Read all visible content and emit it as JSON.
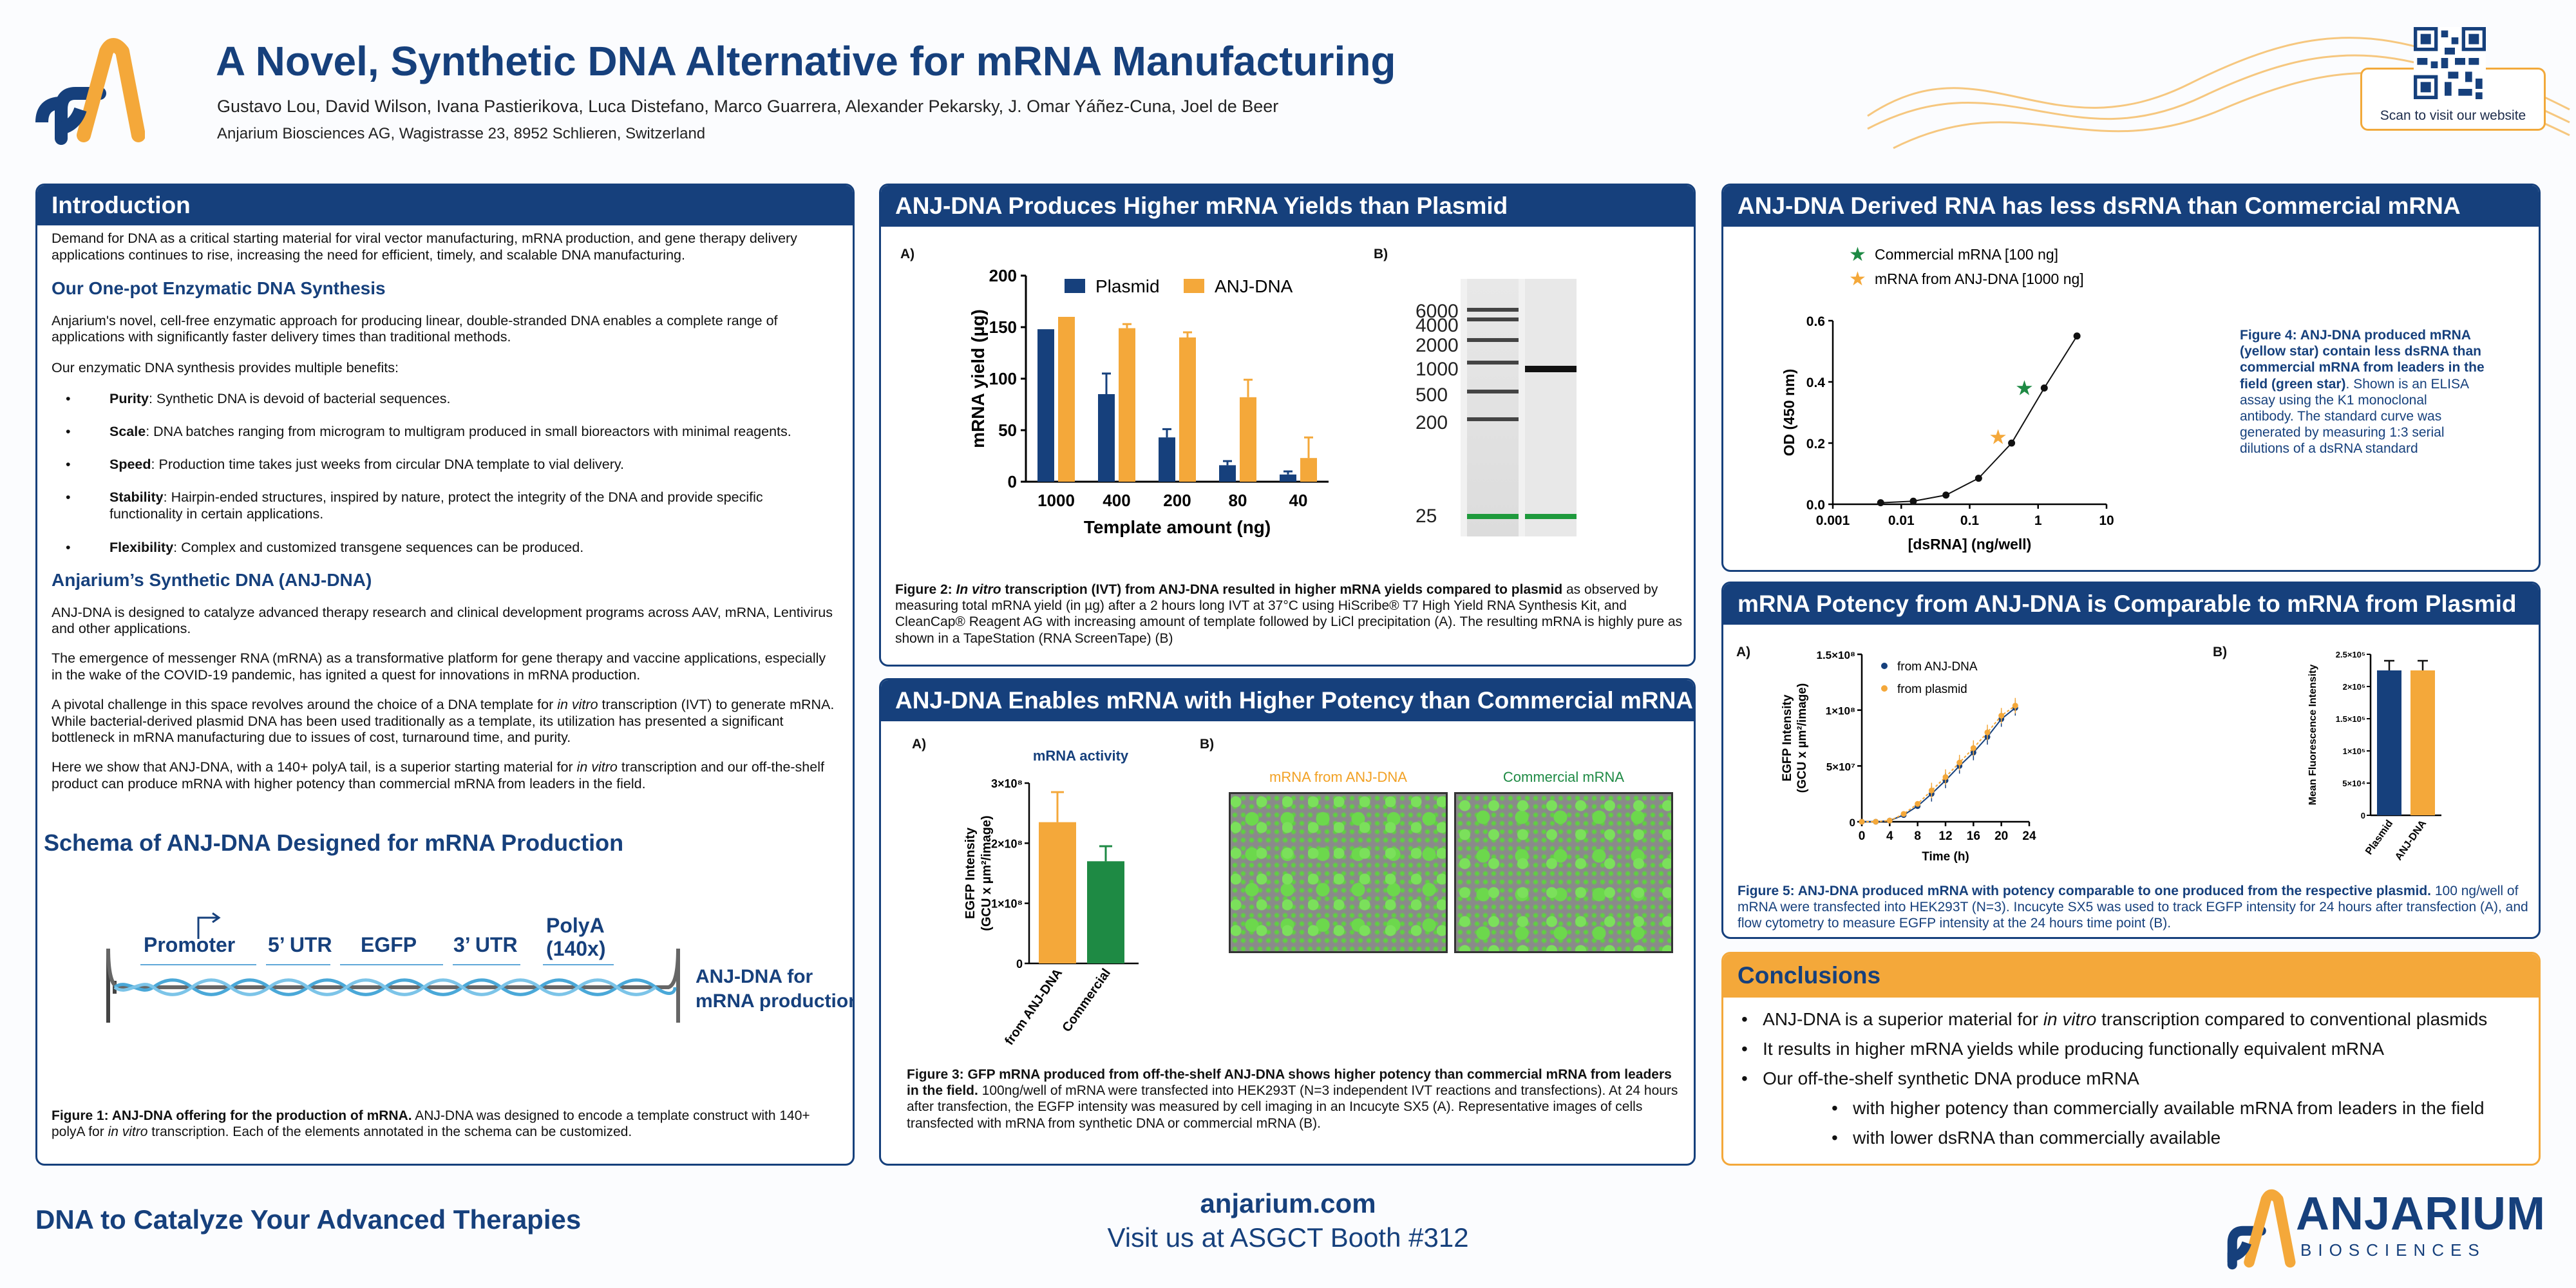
{
  "header": {
    "title": "A Novel, Synthetic DNA Alternative for mRNA Manufacturing",
    "authors": "Gustavo Lou, David Wilson, Ivana Pastierikova, Luca Distefano, Marco Guarrera, Alexander Pekarsky, J. Omar Yáñez-Cuna, Joel de Beer",
    "affiliation": "Anjarium Biosciences AG, Wagistrasse 23, 8952 Schlieren, Switzerland",
    "qr_caption": "Scan to visit our website"
  },
  "intro": {
    "heading": "Introduction",
    "p1": "Demand for DNA as a critical starting material for viral vector manufacturing, mRNA production, and gene therapy delivery applications continues to rise, increasing the need for efficient, timely, and scalable DNA manufacturing.",
    "sub1": "Our One-pot Enzymatic DNA Synthesis",
    "p2": "Anjarium's novel, cell-free enzymatic approach for producing linear, double-stranded DNA enables a complete range of applications with significantly faster delivery times than traditional methods.",
    "p3": "Our enzymatic DNA synthesis provides multiple benefits:",
    "benefits": [
      {
        "term": "Purity",
        "text": ": Synthetic DNA is devoid of bacterial sequences."
      },
      {
        "term": "Scale",
        "text": ": DNA batches ranging from microgram to multigram produced in small bioreactors with minimal reagents."
      },
      {
        "term": "Speed",
        "text": ": Production time takes just weeks from circular DNA template to vial delivery."
      },
      {
        "term": "Stability",
        "text": ": Hairpin-ended structures, inspired by nature, protect the integrity of the DNA and provide specific functionality in certain applications."
      },
      {
        "term": "Flexibility",
        "text": ": Complex and customized transgene sequences can be produced."
      }
    ],
    "sub2": "Anjarium’s Synthetic DNA (ANJ-DNA)",
    "p4": "ANJ-DNA is designed to catalyze advanced therapy research and clinical development programs across AAV, mRNA, Lentivirus and other applications.",
    "p5": "The emergence of messenger RNA (mRNA) as a transformative platform for gene therapy and vaccine applications, especially in the wake of the COVID-19 pandemic, has ignited a quest for innovations in mRNA production.",
    "p6a": "A pivotal challenge in this space revolves around the choice of a DNA template for ",
    "p6i": "in vitro",
    "p6b": " transcription (IVT) to generate mRNA. While bacterial-derived plasmid DNA has been used traditionally as a template, its utilization has presented a significant bottleneck in mRNA manufacturing due to issues of cost, turnaround time, and purity.",
    "p7a": "Here we show that ANJ-DNA, with a 140+ polyA tail, is a superior starting material for ",
    "p7i": "in vitro",
    "p7b": " transcription and our off-the-shelf product can produce mRNA with higher potency than commercial mRNA from leaders in the field.",
    "schema_title": "Schema of ANJ-DNA Designed for mRNA Production",
    "schema_labels": [
      "Promoter",
      "5’ UTR",
      "EGFP",
      "3’ UTR",
      "PolyA (140x)"
    ],
    "schema_polyA_1": "PolyA",
    "schema_polyA_2": "(140x)",
    "schema_side_1": "ANJ-DNA for",
    "schema_side_2": "mRNA production",
    "fig1_bold": "Figure 1: ANJ-DNA offering for the production of mRNA.",
    "fig1_a": " ANJ-DNA was designed to encode a template construct with 140+ polyA for ",
    "fig1_i": "in vitro",
    "fig1_b": " transcription. Each of the elements annotated in the schema can be customized."
  },
  "panel2": {
    "heading": "ANJ-DNA Produces Higher mRNA Yields than Plasmid",
    "labelA": "A)",
    "labelB": "B)",
    "gel_ladder": [
      "6000",
      "4000",
      "2000",
      "1000",
      "500",
      "200",
      "25"
    ],
    "cap_bold1": "Figure 2: ",
    "cap_it": "In vitro",
    "cap_bold2": " transcription (IVT) from ANJ-DNA resulted in higher mRNA yields compared to plasmid",
    "cap_rest": " as observed by measuring total mRNA yield (in µg) after a 2 hours long IVT at 37°C using HiScribe® T7 High Yield RNA Synthesis Kit, and CleanCap® Reagent AG with increasing amount of template followed by LiCl precipitation (A). The resulting mRNA is highly pure as shown in a TapeStation (RNA ScreenTape) (B)"
  },
  "panel3": {
    "heading": "ANJ-DNA Enables mRNA with Higher Potency than Commercial mRNA",
    "labelA": "A)",
    "labelB": "B)",
    "img1_label": "mRNA from ANJ-DNA",
    "img2_label": "Commercial  mRNA",
    "cap_bold": "Figure 3: GFP mRNA produced from off-the-shelf ANJ-DNA shows higher potency than commercial mRNA from leaders in the field.",
    "cap_rest": " 100ng/well of mRNA were transfected into HEK293T (N=3 independent IVT reactions and transfections). At 24 hours after transfection, the EGFP intensity was measured by cell imaging in an Incucyte SX5 (A). Representative images of cells transfected with mRNA from synthetic DNA  or commercial mRNA (B)."
  },
  "panel4": {
    "heading": "ANJ-DNA Derived RNA has less dsRNA than Commercial mRNA",
    "cap_bold": "Figure 4: ANJ-DNA produced mRNA (yellow star) contain less dsRNA than commercial mRNA from leaders in the field (green star)",
    "cap_rest": ". Shown is an ELISA assay using the K1 monoclonal antibody. The standard curve was generated by measuring 1:3 serial dilutions of a dsRNA standard"
  },
  "panel5": {
    "heading": "mRNA Potency from ANJ-DNA is Comparable to mRNA from Plasmid",
    "labelA": "A)",
    "labelB": "B)",
    "cap_bold": "Figure 5: ANJ-DNA produced mRNA with potency comparable to one produced from the respective plasmid.",
    "cap_rest": " 100 ng/well of mRNA were transfected into HEK293T (N=3). Incucyte SX5 was used to track EGFP intensity for 24 hours after transfection (A), and flow cytometry to measure EGFP intensity at the 24 hours time point (B)."
  },
  "conclusions": {
    "heading": "Conclusions",
    "items": [
      {
        "a": "ANJ-DNA is a superior material for ",
        "i": "in vitro",
        "b": " transcription compared to conventional plasmids"
      },
      {
        "a": "It results in higher mRNA yields while producing functionally equivalent mRNA",
        "i": "",
        "b": ""
      },
      {
        "a": "Our off-the-shelf synthetic DNA produce mRNA",
        "i": "",
        "b": ""
      }
    ],
    "subitems": [
      "with higher potency than commercially available mRNA from leaders in the field",
      "with lower dsRNA than commercially available"
    ]
  },
  "footer": {
    "tagline": "DNA to Catalyze Your Advanced Therapies",
    "url": "anjarium.com",
    "booth": "Visit us at ASGCT Booth #312",
    "brand": "ANJARIUM",
    "brand_sub": "BIOSCIENCES"
  },
  "colors": {
    "navy": "#16407c",
    "orange": "#f4a83a",
    "green": "#1e8a44"
  },
  "chart_data": [
    {
      "type": "bar",
      "id": "fig2A",
      "categories": [
        "1000",
        "400",
        "200",
        "80",
        "40"
      ],
      "series": [
        {
          "name": "Plasmid",
          "values": [
            148,
            85,
            43,
            16,
            7
          ],
          "errors": [
            0,
            20,
            8,
            4,
            3
          ],
          "color": "#16407c"
        },
        {
          "name": "ANJ-DNA",
          "values": [
            160,
            149,
            140,
            82,
            23
          ],
          "errors": [
            0,
            4,
            5,
            17,
            20
          ],
          "color": "#f4a83a"
        }
      ],
      "xlabel": "Template amount (ng)",
      "ylabel": "mRNA yield (µg)",
      "ylim": [
        0,
        200
      ],
      "yticks": [
        0,
        50,
        100,
        150,
        200
      ]
    },
    {
      "type": "bar",
      "id": "fig3A",
      "title": "mRNA activity",
      "categories": [
        "from ANJ-DNA",
        "Commercial"
      ],
      "values": [
        235000000.0,
        170000000.0
      ],
      "errors": [
        50000000.0,
        25000000.0
      ],
      "colors": [
        "#f4a83a",
        "#1e8a44"
      ],
      "ylabel": "EGFP Intensity (GCU x µm²/image)",
      "ylim": [
        0,
        300000000.0
      ],
      "yticks": [
        "0",
        "1×10⁸",
        "2×10⁸",
        "3×10⁸"
      ]
    },
    {
      "type": "scatter",
      "id": "fig4",
      "scale": "log-x",
      "x_std": [
        0.005,
        0.015,
        0.045,
        0.135,
        0.41,
        1.23,
        3.7
      ],
      "y_std": [
        0.005,
        0.01,
        0.03,
        0.085,
        0.2,
        0.38,
        0.55
      ],
      "markers": [
        {
          "name": "Commercial mRNA [100 ng]",
          "x": 0.63,
          "y": 0.38,
          "color": "#1e8a44"
        },
        {
          "name": "mRNA from ANJ-DNA [1000 ng]",
          "x": 0.26,
          "y": 0.22,
          "color": "#f4a83a"
        }
      ],
      "xlabel": "[dsRNA] (ng/well)",
      "ylabel": "OD (450 nm)",
      "xlim": [
        0.001,
        10
      ],
      "ylim": [
        0,
        0.6
      ],
      "xticks": [
        "0.001",
        "0.01",
        "0.1",
        "1",
        "10"
      ],
      "yticks": [
        "0.0",
        "0.2",
        "0.4",
        "0.6"
      ]
    },
    {
      "type": "line",
      "id": "fig5A",
      "x": [
        0,
        2,
        4,
        6,
        8,
        10,
        12,
        14,
        16,
        18,
        20,
        22
      ],
      "series": [
        {
          "name": "from ANJ-DNA",
          "values": [
            0,
            0,
            1000000.0,
            6000000.0,
            14000000.0,
            25000000.0,
            37000000.0,
            50000000.0,
            62000000.0,
            76000000.0,
            92000000.0,
            102000000.0
          ],
          "color": "#16407c"
        },
        {
          "name": "from plasmid",
          "values": [
            0,
            0,
            1000000.0,
            7000000.0,
            16000000.0,
            28000000.0,
            40000000.0,
            53000000.0,
            66000000.0,
            80000000.0,
            95000000.0,
            104000000.0
          ],
          "color": "#f4a83a"
        }
      ],
      "xlabel": "Time (h)",
      "ylabel": "EGFP Intensity (GCU x µm²/image)",
      "xlim": [
        0,
        24
      ],
      "ylim": [
        0,
        150000000.0
      ],
      "xticks": [
        "0",
        "4",
        "8",
        "12",
        "16",
        "20",
        "24"
      ],
      "yticks": [
        "0",
        "5×10⁷",
        "1×10⁸",
        "1.5×10⁸"
      ]
    },
    {
      "type": "bar",
      "id": "fig5B",
      "categories": [
        "Plasmid",
        "ANJ-DNA"
      ],
      "values": [
        225000.0,
        225000.0
      ],
      "errors": [
        15000.0,
        15000.0
      ],
      "colors": [
        "#16407c",
        "#f4a83a"
      ],
      "ylabel": "Mean Fluorescence Intensity",
      "ylim": [
        0,
        250000.0
      ],
      "yticks": [
        "0",
        "5×10⁴",
        "1×10⁵",
        "1.5×10⁵",
        "2×10⁵",
        "2.5×10⁵"
      ]
    }
  ]
}
